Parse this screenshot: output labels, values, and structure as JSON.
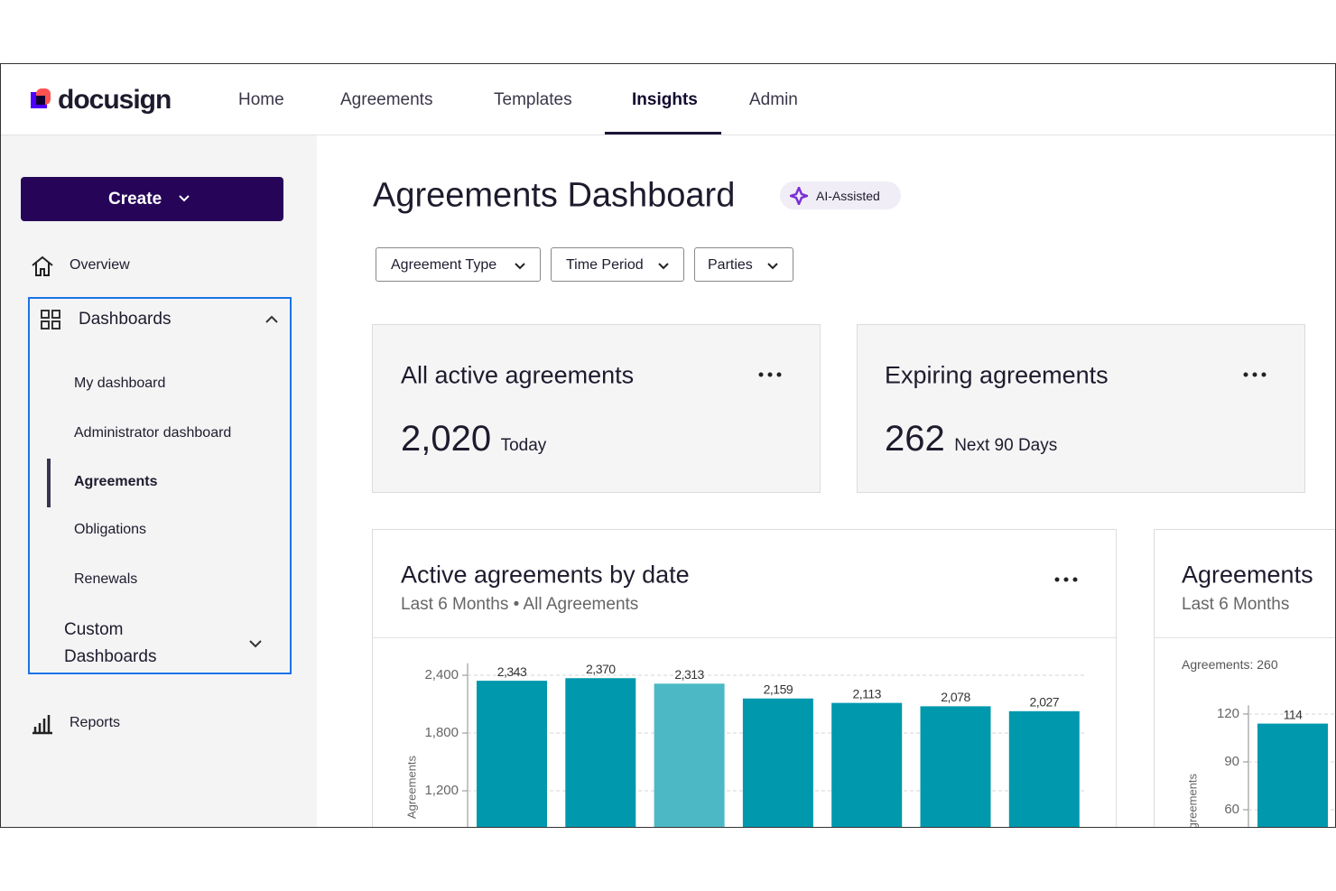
{
  "header": {
    "brand": "docusign",
    "nav": [
      "Home",
      "Agreements",
      "Templates",
      "Insights",
      "Admin"
    ]
  },
  "sidebar": {
    "create_button": "Create",
    "overview": "Overview",
    "dashboards": "Dashboards",
    "dashboard_items": [
      "My dashboard",
      "Administrator dashboard",
      "Agreements",
      "Obligations",
      "Renewals"
    ],
    "custom_dashboards": "Custom Dashboards",
    "reports": "Reports"
  },
  "main": {
    "title": "Agreements Dashboard",
    "badge": "AI-Assisted",
    "filters": [
      "Agreement Type",
      "Time Period",
      "Parties"
    ],
    "cards": [
      {
        "title": "All active agreements",
        "value": "2,020",
        "period": "Today"
      },
      {
        "title": "Expiring agreements",
        "value": "262",
        "period": "Next 90 Days"
      }
    ]
  },
  "chart_data": [
    {
      "type": "bar",
      "title": "Active agreements by date",
      "subtitle": "Last 6 Months • All Agreements",
      "y_label": "Agreements",
      "categories": [
        null,
        null,
        null,
        null,
        null,
        null,
        null
      ],
      "values": [
        2343,
        2370,
        2313,
        2159,
        2113,
        2078,
        2027
      ],
      "value_labels": [
        "2,343",
        "2,370",
        "2,313",
        "2,159",
        "2,113",
        "2,078",
        "2,027"
      ],
      "colors": [
        "#0098ad",
        "#0098ad",
        "#4cb8c6",
        "#0098ad",
        "#0098ad",
        "#0098ad",
        "#0098ad"
      ],
      "ylim": [
        0,
        2600
      ],
      "yticks": [
        {
          "value": 1200,
          "label": "1,200"
        },
        {
          "value": 1800,
          "label": "1,800"
        },
        {
          "value": 2400,
          "label": "2,400"
        }
      ],
      "grid": true
    },
    {
      "type": "bar",
      "title": "Agreements",
      "subtitle": "Last 6 Months",
      "annotation": "Agreements: 260",
      "y_label": "Agreements",
      "categories": [
        null
      ],
      "values": [
        114
      ],
      "colors": [
        "#0098ad"
      ],
      "ylim": [
        0,
        130
      ],
      "yticks": [
        60,
        90,
        120
      ],
      "grid": true
    }
  ]
}
